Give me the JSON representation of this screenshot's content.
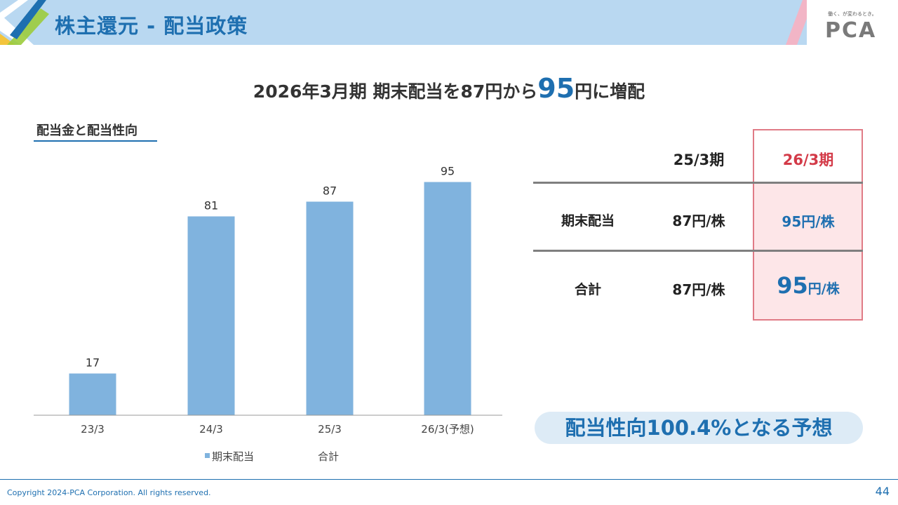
{
  "header": {
    "title": "株主還元 - 配当政策",
    "logo_tagline": "働く、が変わるとき。",
    "logo_text": "PCA",
    "colors": {
      "bar": "#b9d8f1",
      "title": "#1e6fb0",
      "accent_pink": "#f2b5c6"
    }
  },
  "headline": {
    "prefix": "2026年3月期 期末配当を87円から",
    "highlight": "95",
    "suffix": "円に増配"
  },
  "chart_title": "配当金と配当性向",
  "chart_data": {
    "type": "bar",
    "categories": [
      "23/3",
      "24/3",
      "25/3",
      "26/3(予想)"
    ],
    "series": [
      {
        "name": "期末配当",
        "values": [
          17,
          81,
          87,
          95
        ],
        "color": "#80b3de"
      }
    ],
    "data_labels": [
      "17",
      "81",
      "87",
      "95"
    ],
    "legend": [
      "期末配当",
      "合計"
    ],
    "legend_position": "bottom",
    "ylim": [
      0,
      100
    ],
    "grid": false
  },
  "table": {
    "headers": [
      "",
      "25/3期",
      "26/3期"
    ],
    "rows": [
      {
        "label": "期末配当",
        "prev": "87円/株",
        "curr_num": "95",
        "curr_unit": "円/株"
      },
      {
        "label": "合計",
        "prev": "87円/株",
        "curr_num": "95",
        "curr_unit": "円/株"
      }
    ],
    "highlight_colors": {
      "border": "#e07b86",
      "fill": "#fde6e8",
      "head_text": "#d33a48",
      "value_text": "#1e6fb0"
    }
  },
  "payout_note": "配当性向100.4%となる予想",
  "footer": {
    "copyright": "Copyright 2024-PCA Corporation. All rights reserved.",
    "page_number": "44"
  }
}
